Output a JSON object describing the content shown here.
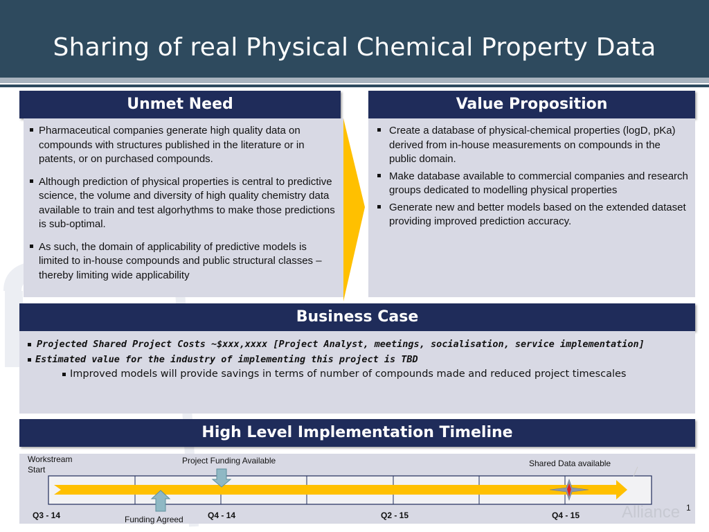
{
  "title": "Sharing of real Physical Chemical Property Data",
  "unmet_need": {
    "heading": "Unmet Need",
    "bullets": [
      "Pharmaceutical companies generate high quality data on compounds with structures published in the literature or in patents, or on purchased compounds.",
      "Although prediction of physical properties is central to predictive science, the volume and diversity of high quality chemistry data available to train and test algorhythms to make those predictions is sub-optimal.",
      "As such, the domain of applicability of predictive models is limited to in-house compounds and public structural classes – thereby limiting wide applicability"
    ]
  },
  "value_proposition": {
    "heading": "Value Proposition",
    "bullets": [
      "Create a database of physical-chemical properties (logD, pKa) derived from in-house measurements on compounds in the public domain.",
      "Make database available to commercial companies and research groups dedicated to modelling physical properties",
      "Generate new and better models based on the extended dataset providing improved prediction accuracy."
    ]
  },
  "business_case": {
    "heading": "Business Case",
    "line1": "Projected Shared Project Costs ~$xxx,xxxx [Project Analyst, meetings, socialisation, service implementation]",
    "line2": "Estimated value for the industry of implementing this project is TBD",
    "sub_bullet": "Improved models will provide savings in terms of number of compounds made and reduced project timescales"
  },
  "timeline": {
    "heading": "High Level Implementation Timeline",
    "workstream_start": "Workstream Start",
    "project_funding_available": "Project Funding Available",
    "funding_agreed": "Funding Agreed",
    "shared_data_available": "Shared Data available",
    "quarters": [
      "Q3 - 14",
      "Q4 - 14",
      "Q2 - 15",
      "Q4 - 15"
    ]
  },
  "watermark": "Alliance",
  "page_number": "1",
  "colors": {
    "title_bar": "#2e4a5e",
    "header": "#1f2c5a",
    "panel": "#d8d9e4",
    "arrow": "#ffc000",
    "marker": "#8fb8c4"
  }
}
